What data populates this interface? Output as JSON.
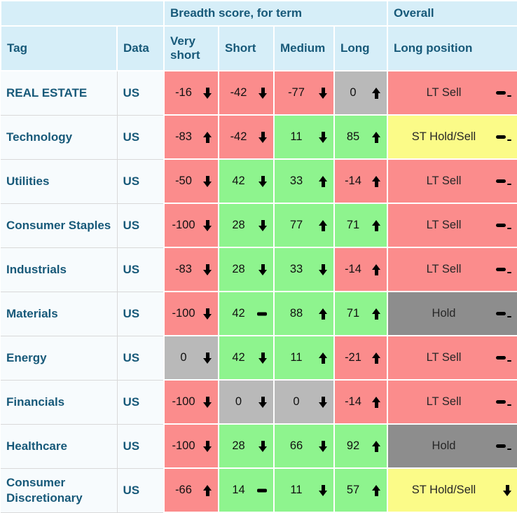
{
  "header": {
    "group_breadth": "Breadth score, for term",
    "group_overall": "Overall",
    "col_tag": "Tag",
    "col_data": "Data",
    "col_very_short": "Very short",
    "col_short": "Short",
    "col_medium": "Medium",
    "col_long": "Long",
    "col_long_position": "Long position"
  },
  "colors": {
    "red": "#fb8c8c",
    "green": "#8ef48e",
    "gray": "#b9b9b9",
    "darkgray": "#8d8d8d",
    "yellow": "#fbfb88",
    "header_bg": "#d6eef8",
    "label_bg": "#f7fbfd",
    "teal_text": "#175979"
  },
  "rows": [
    {
      "tag": "REAL ESTATE",
      "data": "US",
      "scores": [
        {
          "value": "-16",
          "trend": "down",
          "bg": "red"
        },
        {
          "value": "-42",
          "trend": "down",
          "bg": "red"
        },
        {
          "value": "-77",
          "trend": "down",
          "bg": "red"
        },
        {
          "value": "0",
          "trend": "up",
          "bg": "gray"
        }
      ],
      "position": {
        "label": "LT Sell",
        "trend": "flat",
        "bg": "red"
      }
    },
    {
      "tag": "Technology",
      "data": "US",
      "scores": [
        {
          "value": "-83",
          "trend": "up",
          "bg": "red"
        },
        {
          "value": "-42",
          "trend": "down",
          "bg": "red"
        },
        {
          "value": "11",
          "trend": "down",
          "bg": "green"
        },
        {
          "value": "85",
          "trend": "up",
          "bg": "green"
        }
      ],
      "position": {
        "label": "ST Hold/Sell",
        "trend": "flat",
        "bg": "yellow"
      }
    },
    {
      "tag": "Utilities",
      "data": "US",
      "scores": [
        {
          "value": "-50",
          "trend": "down",
          "bg": "red"
        },
        {
          "value": "42",
          "trend": "down",
          "bg": "green"
        },
        {
          "value": "33",
          "trend": "up",
          "bg": "green"
        },
        {
          "value": "-14",
          "trend": "up",
          "bg": "red"
        }
      ],
      "position": {
        "label": "LT Sell",
        "trend": "flat",
        "bg": "red"
      }
    },
    {
      "tag": "Consumer Staples",
      "data": "US",
      "scores": [
        {
          "value": "-100",
          "trend": "down",
          "bg": "red"
        },
        {
          "value": "28",
          "trend": "down",
          "bg": "green"
        },
        {
          "value": "77",
          "trend": "up",
          "bg": "green"
        },
        {
          "value": "71",
          "trend": "up",
          "bg": "green"
        }
      ],
      "position": {
        "label": "LT Sell",
        "trend": "flat",
        "bg": "red"
      }
    },
    {
      "tag": "Industrials",
      "data": "US",
      "scores": [
        {
          "value": "-83",
          "trend": "down",
          "bg": "red"
        },
        {
          "value": "28",
          "trend": "down",
          "bg": "green"
        },
        {
          "value": "33",
          "trend": "down",
          "bg": "green"
        },
        {
          "value": "-14",
          "trend": "up",
          "bg": "red"
        }
      ],
      "position": {
        "label": "LT Sell",
        "trend": "flat",
        "bg": "red"
      }
    },
    {
      "tag": "Materials",
      "data": "US",
      "scores": [
        {
          "value": "-100",
          "trend": "down",
          "bg": "red"
        },
        {
          "value": "42",
          "trend": "flat",
          "bg": "green"
        },
        {
          "value": "88",
          "trend": "up",
          "bg": "green"
        },
        {
          "value": "71",
          "trend": "up",
          "bg": "green"
        }
      ],
      "position": {
        "label": "Hold",
        "trend": "flat",
        "bg": "darkgray"
      }
    },
    {
      "tag": "Energy",
      "data": "US",
      "scores": [
        {
          "value": "0",
          "trend": "down",
          "bg": "gray"
        },
        {
          "value": "42",
          "trend": "down",
          "bg": "green"
        },
        {
          "value": "11",
          "trend": "up",
          "bg": "green"
        },
        {
          "value": "-21",
          "trend": "up",
          "bg": "red"
        }
      ],
      "position": {
        "label": "LT Sell",
        "trend": "flat",
        "bg": "red"
      }
    },
    {
      "tag": "Financials",
      "data": "US",
      "scores": [
        {
          "value": "-100",
          "trend": "down",
          "bg": "red"
        },
        {
          "value": "0",
          "trend": "down",
          "bg": "gray"
        },
        {
          "value": "0",
          "trend": "down",
          "bg": "gray"
        },
        {
          "value": "-14",
          "trend": "up",
          "bg": "red"
        }
      ],
      "position": {
        "label": "LT Sell",
        "trend": "flat",
        "bg": "red"
      }
    },
    {
      "tag": "Healthcare",
      "data": "US",
      "scores": [
        {
          "value": "-100",
          "trend": "down",
          "bg": "red"
        },
        {
          "value": "28",
          "trend": "down",
          "bg": "green"
        },
        {
          "value": "66",
          "trend": "down",
          "bg": "green"
        },
        {
          "value": "92",
          "trend": "up",
          "bg": "green"
        }
      ],
      "position": {
        "label": "Hold",
        "trend": "flat",
        "bg": "darkgray"
      }
    },
    {
      "tag": "Consumer Discretionary",
      "data": "US",
      "scores": [
        {
          "value": "-66",
          "trend": "up",
          "bg": "red"
        },
        {
          "value": "14",
          "trend": "flat",
          "bg": "green"
        },
        {
          "value": "11",
          "trend": "down",
          "bg": "green"
        },
        {
          "value": "57",
          "trend": "up",
          "bg": "green"
        }
      ],
      "position": {
        "label": "ST Hold/Sell",
        "trend": "down",
        "bg": "yellow"
      }
    }
  ]
}
